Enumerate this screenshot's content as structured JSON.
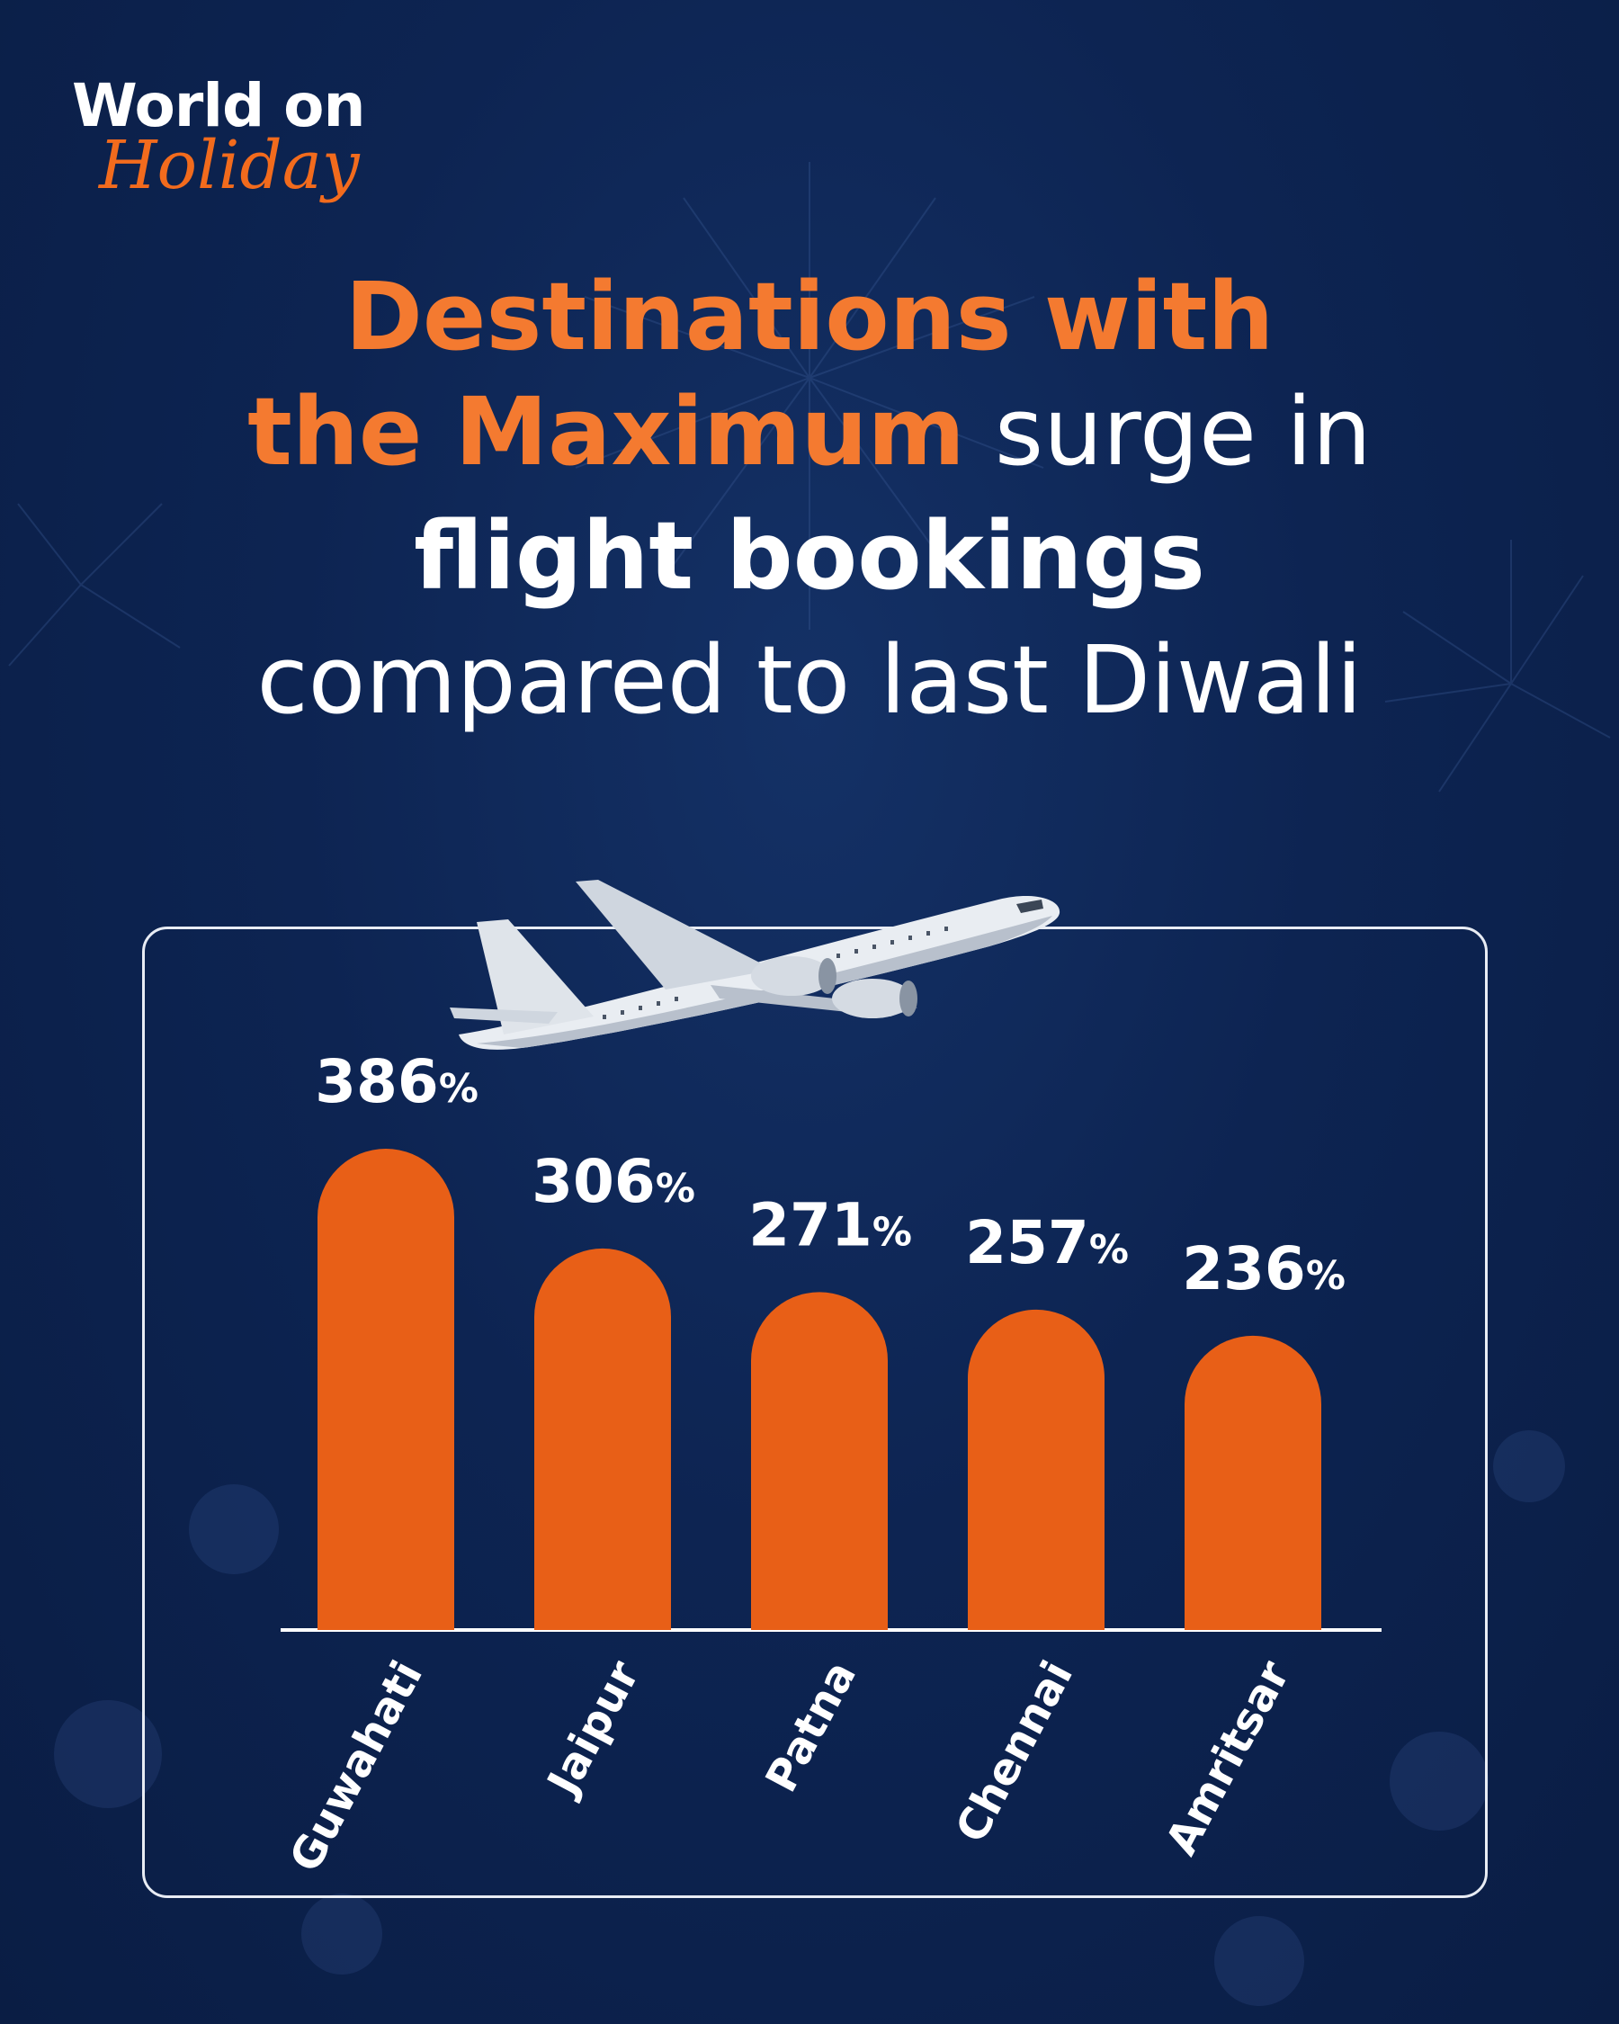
{
  "logo": {
    "line1": "World on",
    "line2": "Holiday"
  },
  "headline": {
    "line1": "Destinations with",
    "line2_bold": "the Maximum",
    "line2_light": "surge in",
    "line3": "flight bookings",
    "line4": "compared to last Diwali"
  },
  "colors": {
    "background": "#0d2452",
    "accent": "#f47a30",
    "bar": "#e85f17",
    "text": "#ffffff"
  },
  "chart_data": {
    "type": "bar",
    "categories": [
      "Guwahati",
      "Jaipur",
      "Patna",
      "Chennai",
      "Amritsar"
    ],
    "values": [
      386,
      306,
      271,
      257,
      236
    ],
    "value_suffix": "%",
    "title": "",
    "xlabel": "",
    "ylabel": "",
    "ylim": [
      0,
      386
    ],
    "grid": false,
    "legend": "none"
  }
}
